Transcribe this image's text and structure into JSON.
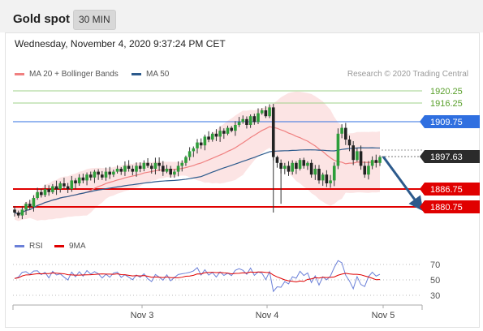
{
  "header": {
    "title": "Gold spot",
    "timeframe": "30 MIN"
  },
  "datetime": "Wednesday, November 4, 2020 9:37:24 PM CET",
  "legend": {
    "ma20": {
      "label": "MA 20 + Bollinger Bands",
      "color": "#f08080"
    },
    "ma50": {
      "label": "MA 50",
      "color": "#2c5a8c"
    }
  },
  "copyright": "Research © 2020 Trading Central",
  "price_levels": [
    {
      "label": "1920.25",
      "kind": "target",
      "color": "#5aa02c"
    },
    {
      "label": "1916.25",
      "kind": "target",
      "color": "#5aa02c"
    },
    {
      "label": "1909.75",
      "kind": "resistance",
      "color": "#2f6fe0"
    },
    {
      "label": "1897.63",
      "kind": "current",
      "color": "#333333"
    },
    {
      "label": "1886.75",
      "kind": "support",
      "color": "#e00000"
    },
    {
      "label": "1880.75",
      "kind": "support",
      "color": "#e00000"
    }
  ],
  "rsi_legend": {
    "rsi": {
      "label": "RSI",
      "color": "#6b80d8"
    },
    "ma9": {
      "label": "9MA",
      "color": "#e00000"
    }
  },
  "rsi_levels": [
    "70",
    "50",
    "30"
  ],
  "x_axis": [
    "Nov 3",
    "Nov 4",
    "Nov 5"
  ],
  "chart_data": {
    "type": "candlestick",
    "y_range": [
      1874,
      1924
    ],
    "closes": [
      1879,
      1878,
      1880,
      1882,
      1881,
      1884,
      1886,
      1885,
      1887,
      1886,
      1888,
      1887,
      1889,
      1888,
      1887,
      1890,
      1889,
      1891,
      1890,
      1892,
      1891,
      1893,
      1892,
      1891,
      1893,
      1892,
      1893,
      1894,
      1893,
      1895,
      1894,
      1893,
      1895,
      1894,
      1896,
      1895,
      1894,
      1896,
      1895,
      1893,
      1894,
      1892,
      1893,
      1895,
      1896,
      1898,
      1900,
      1901,
      1903,
      1902,
      1905,
      1904,
      1906,
      1905,
      1907,
      1906,
      1908,
      1907,
      1909,
      1910,
      1911,
      1909,
      1912,
      1910,
      1913,
      1914,
      1912,
      1915,
      1898,
      1896,
      1894,
      1895,
      1893,
      1896,
      1894,
      1897,
      1895,
      1896,
      1892,
      1894,
      1890,
      1892,
      1889,
      1890,
      1895,
      1906,
      1908,
      1904,
      1902,
      1897,
      1900,
      1895,
      1892,
      1895,
      1897,
      1896,
      1898
    ]
  }
}
